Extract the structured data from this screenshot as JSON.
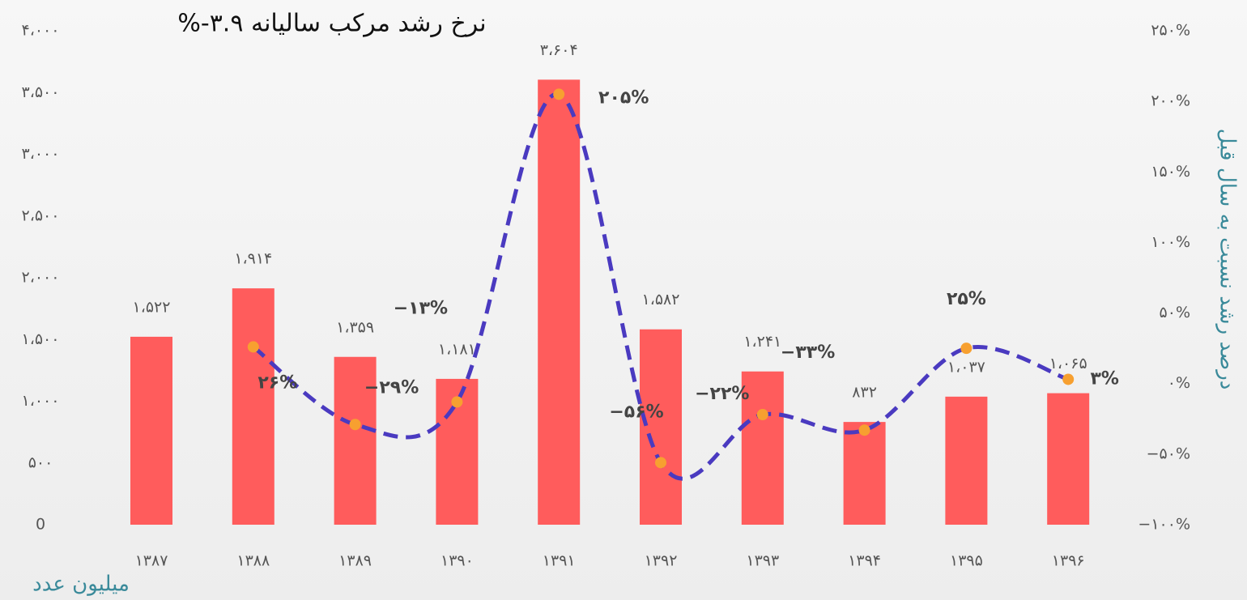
{
  "chart_data": {
    "type": "bar",
    "title": "نرخ رشد مرکب سالیانه ۳.۹-%",
    "y_label": "میلیون عدد",
    "y2_label": "درصد رشد نسبت به سال قبل",
    "categories": [
      "۱۳۸۷",
      "۱۳۸۸",
      "۱۳۸۹",
      "۱۳۹۰",
      "۱۳۹۱",
      "۱۳۹۲",
      "۱۳۹۳",
      "۱۳۹۴",
      "۱۳۹۵",
      "۱۳۹۶"
    ],
    "series": [
      {
        "type": "bar",
        "color": "#ff5c5c",
        "values": [
          1522,
          1914,
          1359,
          1181,
          3604,
          1582,
          1241,
          832,
          1037,
          1065
        ],
        "value_labels": [
          "۱،۵۲۲",
          "۱،۹۱۴",
          "۱،۳۵۹",
          "۱،۱۸۱",
          "۳،۶۰۴",
          "۱،۵۸۲",
          "۱،۲۴۱",
          "۸۳۲",
          "۱،۰۳۷",
          "۱،۰۶۵"
        ]
      },
      {
        "type": "line",
        "axis": "y2",
        "color": "#4a3ac0",
        "marker_color": "#f7a030",
        "dashed": true,
        "values": [
          null,
          26,
          -29,
          -13,
          205,
          -56,
          -22,
          -33,
          25,
          3
        ],
        "value_labels": [
          null,
          "۲۶%",
          "−۲۹%",
          "−۱۳%",
          "۲۰۵%",
          "−۵۶%",
          "−۲۲%",
          "−۳۳%",
          "۲۵%",
          "۳%"
        ]
      }
    ],
    "ylim": [
      0,
      4000
    ],
    "yticks": [
      0,
      {
        "value": 500,
        "label": "۵۰۰"
      },
      {
        "value": 1000,
        "label": "۱،۰۰۰"
      },
      {
        "value": 1500,
        "label": "۱،۵۰۰"
      },
      {
        "value": 2000,
        "label": "۲،۰۰۰"
      },
      {
        "value": 2500,
        "label": "۲،۵۰۰"
      },
      {
        "value": 3000,
        "label": "۳،۰۰۰"
      },
      {
        "value": 3500,
        "label": "۳،۵۰۰"
      },
      {
        "value": 4000,
        "label": "۴،۰۰۰"
      }
    ],
    "y2lim": [
      -100,
      250
    ],
    "y2ticks": [
      {
        "value": -100,
        "label": "−۱۰۰%"
      },
      {
        "value": -50,
        "label": "−۵۰%"
      },
      {
        "value": 0,
        "label": "۰%"
      },
      {
        "value": 50,
        "label": "۵۰%"
      },
      {
        "value": 100,
        "label": "۱۰۰%"
      },
      {
        "value": 150,
        "label": "۱۵۰%"
      },
      {
        "value": 200,
        "label": "۲۰۰%"
      },
      {
        "value": 250,
        "label": "۲۵۰%"
      }
    ],
    "grid": false
  }
}
